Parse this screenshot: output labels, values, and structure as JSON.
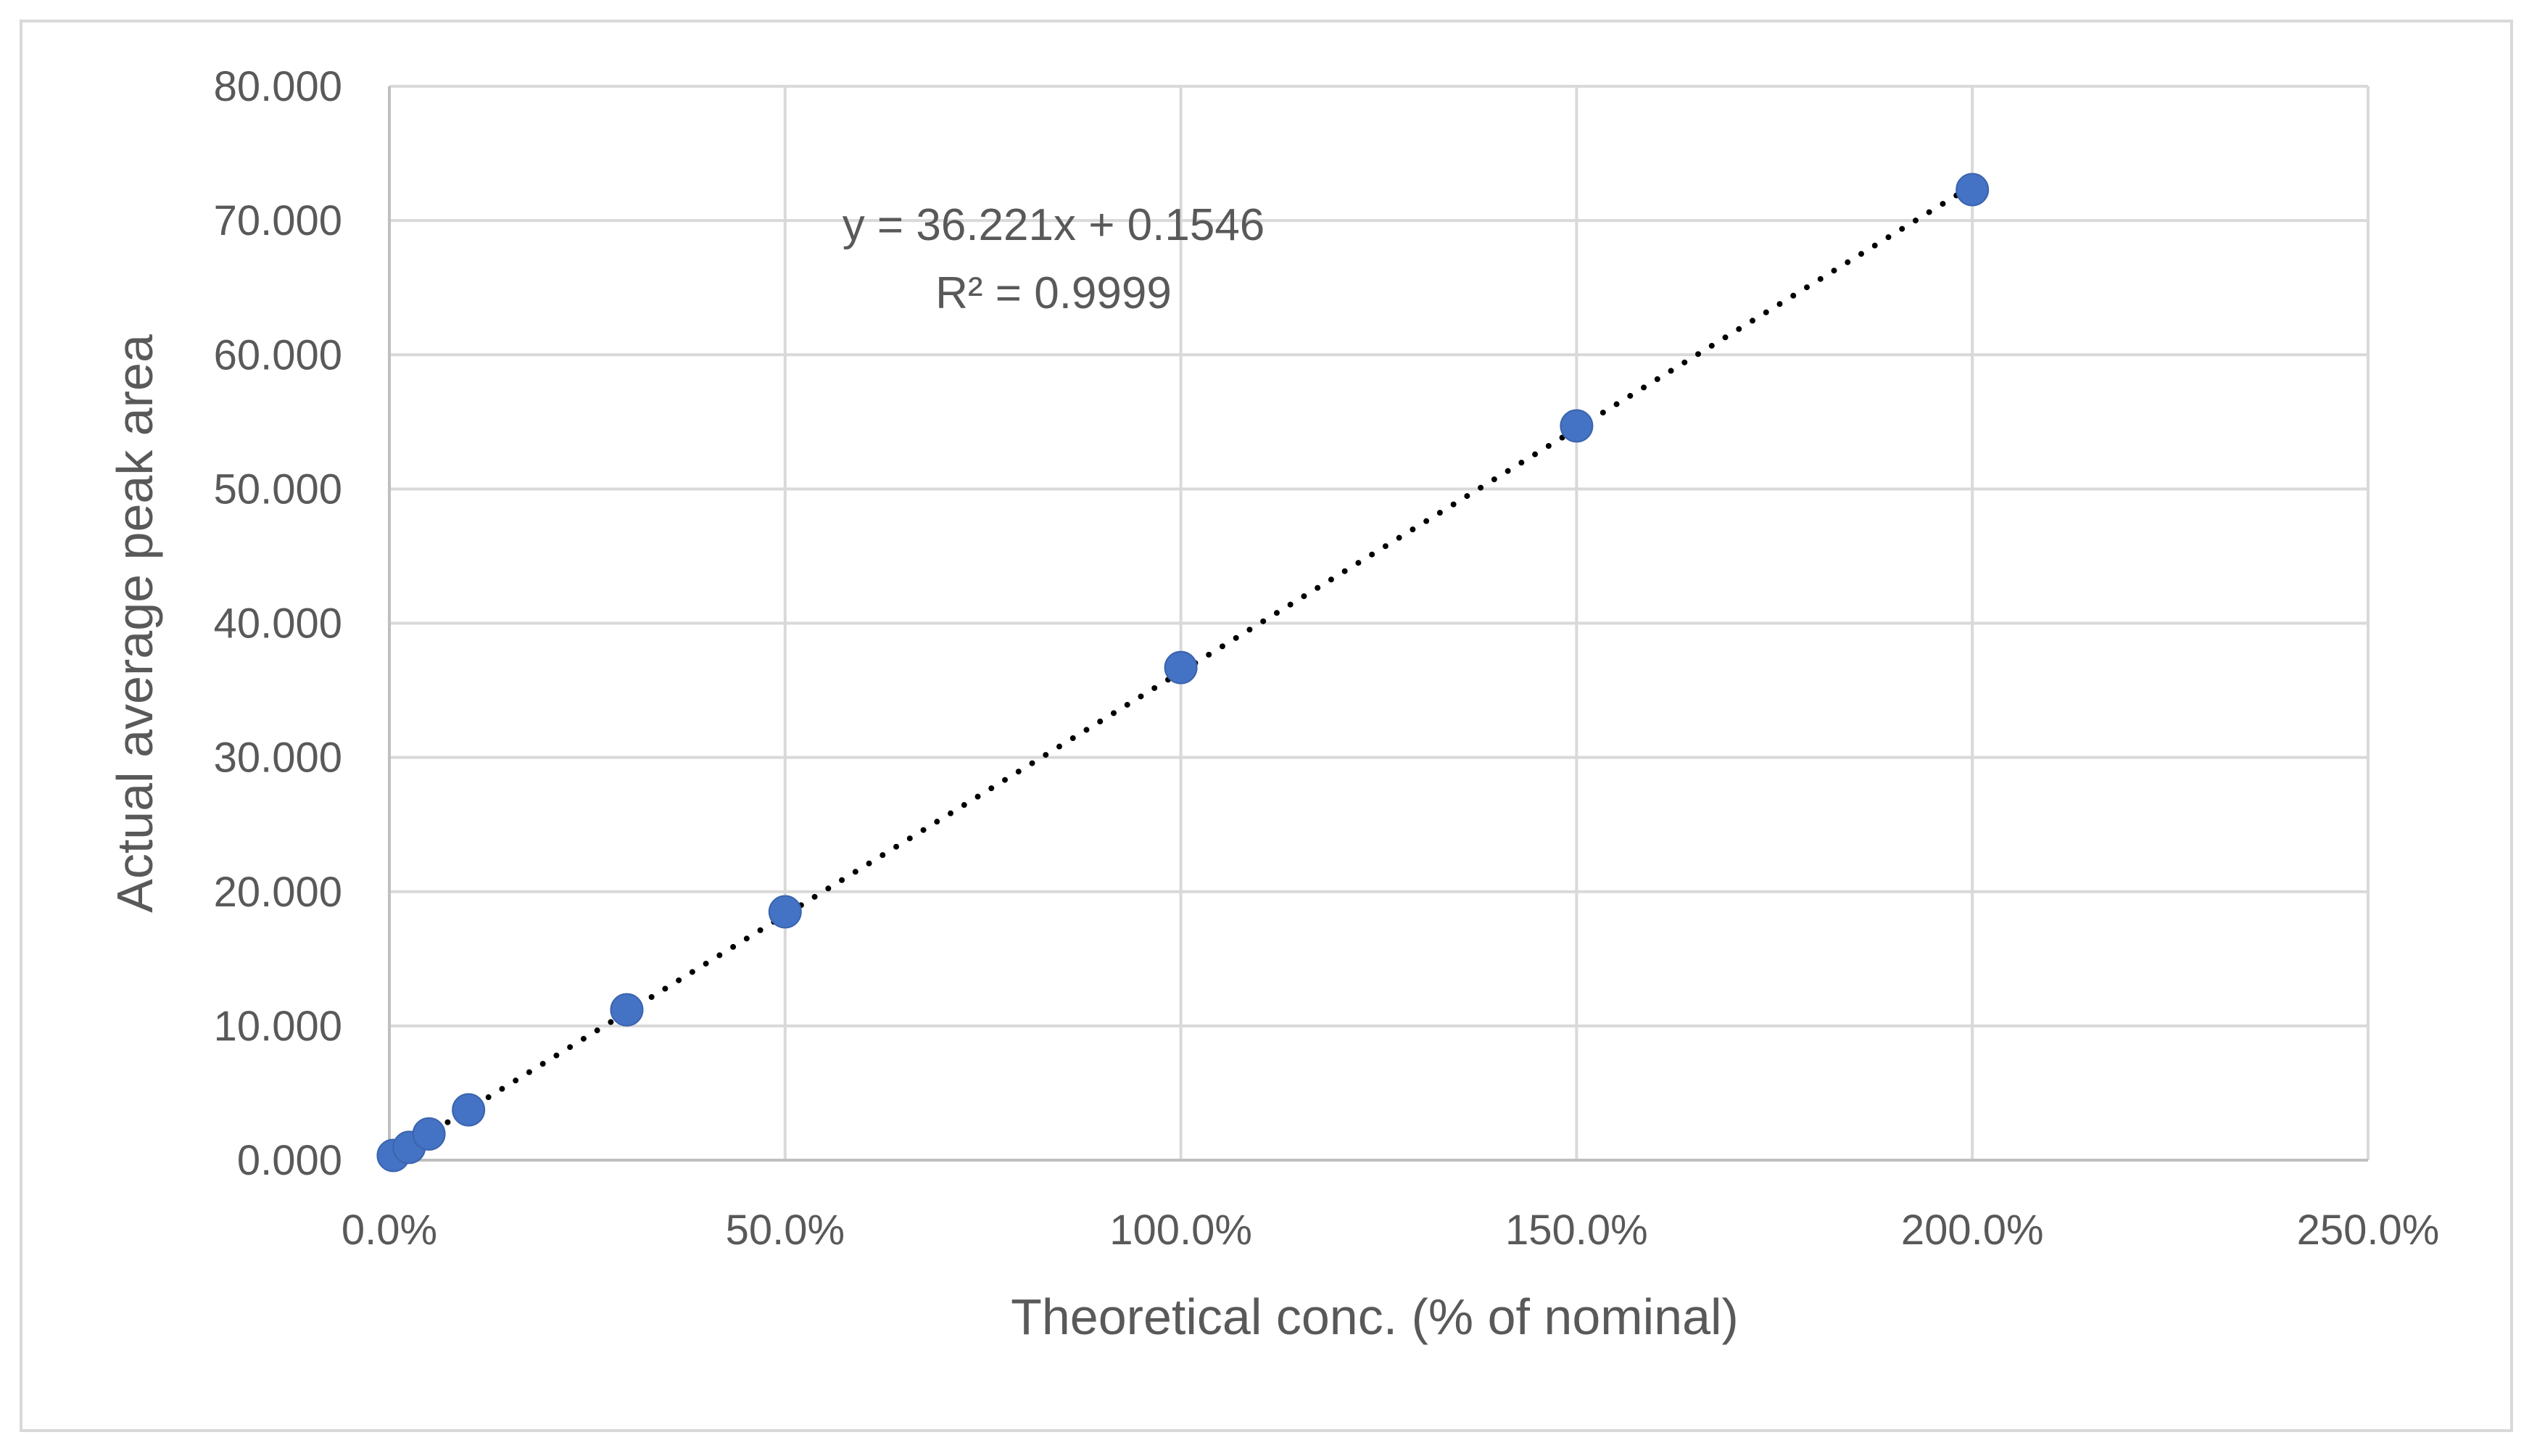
{
  "chart_data": {
    "type": "scatter",
    "title": "",
    "xlabel": "Theoretical conc. (% of nominal)",
    "ylabel": "Actual average peak area",
    "xlim": [
      0,
      2.5
    ],
    "ylim": [
      0,
      80
    ],
    "x_ticks": [
      "0.0%",
      "50.0%",
      "100.0%",
      "150.0%",
      "200.0%",
      "250.0%"
    ],
    "y_ticks": [
      "0.000",
      "10.000",
      "20.000",
      "30.000",
      "40.000",
      "50.000",
      "60.000",
      "70.000",
      "80.000"
    ],
    "grid": true,
    "legend": "none",
    "series": [
      {
        "x": [
          0.005,
          0.025,
          0.05,
          0.1,
          0.3,
          0.5,
          1.0,
          1.5,
          2.0
        ],
        "y": [
          0.35,
          0.95,
          1.95,
          3.75,
          11.2,
          18.5,
          36.7,
          54.7,
          72.3
        ],
        "marker_color": "#4472c4"
      }
    ],
    "trendline": {
      "type": "linear",
      "slope": 36.221,
      "intercept": 0.1546,
      "style": "dotted",
      "color": "#000000",
      "equation": "y = 36.221x + 0.1546",
      "r_squared": "R² = 0.9999"
    },
    "colors": {
      "gridline": "#d9d9d9",
      "axis": "#bfbfbf",
      "text": "#595959"
    }
  }
}
